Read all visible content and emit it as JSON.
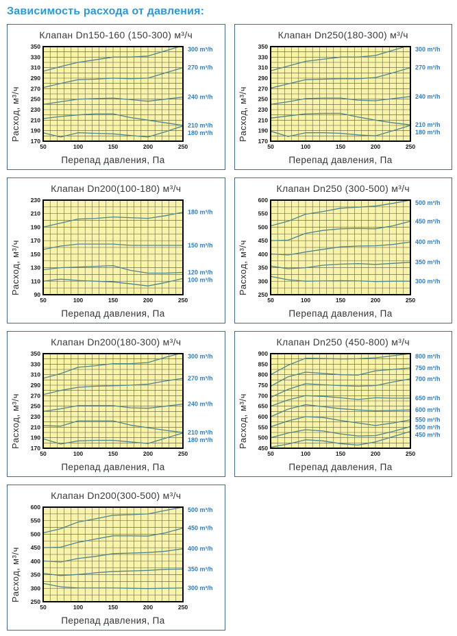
{
  "page": {
    "heading": "Зависимость расхода от давления:"
  },
  "colors": {
    "heading_blue": "#2c99d4",
    "panel_border": "#44688c",
    "plot_bg": "#f8f3ab",
    "grid_line": "#55533a",
    "curve": "#4d858d",
    "series_label_blue": "#2e7ec0",
    "frame": "#000000"
  },
  "chart_data": [
    {
      "type": "line",
      "title": "Клапан Dn150-160 (150-300) м³/ч",
      "xlabel": "Перепад давления, Па",
      "ylabel": "Расход, м³/ч",
      "legend_position": "right",
      "grid": true,
      "xlim": [
        50,
        250
      ],
      "x_tick_step": 50,
      "x_minor_step": 10,
      "ylim": [
        170,
        350
      ],
      "y_tick_step": 20,
      "y_minor_step": 10,
      "x": [
        50,
        75,
        100,
        125,
        150,
        175,
        200,
        225,
        250
      ],
      "series": [
        {
          "name": "300 m³/h",
          "values": [
            303,
            312,
            320,
            325,
            330,
            330,
            332,
            342,
            352
          ]
        },
        {
          "name": "270 m³/h",
          "values": [
            272,
            280,
            287,
            288,
            290,
            289,
            290,
            300,
            310
          ]
        },
        {
          "name": "240 m³/h",
          "values": [
            240,
            245,
            250,
            251,
            252,
            249,
            246,
            250,
            254
          ]
        },
        {
          "name": "210 m³/h",
          "values": [
            213,
            217,
            220,
            222,
            222,
            215,
            210,
            205,
            200
          ]
        },
        {
          "name": "180 m³/h",
          "values": [
            186,
            178,
            186,
            185,
            184,
            181,
            178,
            188,
            199
          ]
        }
      ]
    },
    {
      "type": "line",
      "title": "Клапан Dn250(180-300) м³/ч",
      "xlabel": "Перепад давления, Па",
      "ylabel": "Расход, м³/ч",
      "legend_position": "right",
      "grid": true,
      "xlim": [
        50,
        250
      ],
      "x_tick_step": 50,
      "x_minor_step": 10,
      "ylim": [
        170,
        350
      ],
      "y_tick_step": 20,
      "y_minor_step": 10,
      "x": [
        50,
        75,
        100,
        125,
        150,
        175,
        200,
        225,
        250
      ],
      "series": [
        {
          "name": "300 m³/h",
          "values": [
            304,
            313,
            322,
            326,
            330,
            330,
            333,
            343,
            353
          ]
        },
        {
          "name": "270 m³/h",
          "values": [
            271,
            279,
            287,
            288,
            289,
            289,
            291,
            300,
            310
          ]
        },
        {
          "name": "240 m³/h",
          "values": [
            240,
            245,
            251,
            252,
            252,
            248,
            247,
            251,
            255
          ]
        },
        {
          "name": "210 m³/h",
          "values": [
            214,
            218,
            222,
            223,
            223,
            216,
            210,
            205,
            201
          ]
        },
        {
          "name": "180 m³/h",
          "values": [
            189,
            179,
            186,
            186,
            185,
            182,
            180,
            190,
            200
          ]
        }
      ]
    },
    {
      "type": "line",
      "title": "Клапан Dn200(100-180) м³/ч",
      "xlabel": "Перепад давления, Па",
      "ylabel": "Расход, м³/ч",
      "legend_position": "right",
      "grid": true,
      "xlim": [
        50,
        250
      ],
      "x_tick_step": 50,
      "x_minor_step": 10,
      "ylim": [
        90,
        230
      ],
      "y_tick_step": 20,
      "y_minor_step": 10,
      "x": [
        50,
        75,
        100,
        125,
        150,
        175,
        200,
        225,
        250
      ],
      "series": [
        {
          "name": "180 m³/h",
          "values": [
            190,
            196,
            202,
            203,
            205,
            204,
            203,
            207,
            212
          ]
        },
        {
          "name": "150 m³/h",
          "values": [
            157,
            162,
            165,
            165,
            165,
            163,
            163,
            163,
            163
          ]
        },
        {
          "name": "120 m³/h",
          "values": [
            127,
            130,
            131,
            132,
            133,
            126,
            122,
            122,
            123
          ]
        },
        {
          "name": "100 m³/h",
          "values": [
            110,
            113,
            111,
            110,
            109,
            106,
            103,
            108,
            114
          ]
        }
      ]
    },
    {
      "type": "line",
      "title": "Клапан Dn250 (300-500) м³/ч",
      "xlabel": "Перепад давления, Па",
      "ylabel": "Расход, м³/ч",
      "legend_position": "right",
      "grid": true,
      "xlim": [
        50,
        250
      ],
      "x_tick_step": 50,
      "x_minor_step": 10,
      "ylim": [
        250,
        600
      ],
      "y_tick_step": 50,
      "y_minor_step": 25,
      "x": [
        50,
        75,
        100,
        125,
        150,
        175,
        200,
        225,
        250
      ],
      "series": [
        {
          "name": "500 m³/h",
          "values": [
            505,
            522,
            548,
            558,
            570,
            574,
            578,
            588,
            600
          ]
        },
        {
          "name": "450 m³/h",
          "values": [
            450,
            452,
            477,
            488,
            494,
            495,
            494,
            505,
            522
          ]
        },
        {
          "name": "400 m³/h",
          "values": [
            401,
            397,
            408,
            418,
            427,
            430,
            431,
            436,
            445
          ]
        },
        {
          "name": "350 m³/h",
          "values": [
            356,
            346,
            350,
            359,
            363,
            365,
            362,
            366,
            370
          ]
        },
        {
          "name": "300 m³/h",
          "values": [
            318,
            305,
            300,
            301,
            302,
            301,
            299,
            300,
            300
          ]
        }
      ]
    },
    {
      "type": "line",
      "title": "Клапан Dn200(180-300) м³/ч",
      "xlabel": "Перепад давления, Па",
      "ylabel": "Расход, м³/ч",
      "legend_position": "right",
      "grid": true,
      "xlim": [
        50,
        250
      ],
      "x_tick_step": 50,
      "x_minor_step": 10,
      "ylim": [
        170,
        350
      ],
      "y_tick_step": 20,
      "y_minor_step": 10,
      "x": [
        50,
        75,
        100,
        125,
        150,
        175,
        200,
        225,
        250
      ],
      "series": [
        {
          "name": "300 m³/h",
          "values": [
            303,
            312,
            324,
            327,
            331,
            331,
            333,
            343,
            352
          ]
        },
        {
          "name": "270 m³/h",
          "values": [
            272,
            280,
            286,
            288,
            289,
            290,
            292,
            298,
            303
          ]
        },
        {
          "name": "240 m³/h",
          "values": [
            240,
            245,
            251,
            251,
            251,
            247,
            246,
            250,
            254
          ]
        },
        {
          "name": "210 m³/h",
          "values": [
            213,
            212,
            222,
            222,
            222,
            214,
            209,
            204,
            200
          ]
        },
        {
          "name": "180 m³/h",
          "values": [
            188,
            178,
            184,
            185,
            185,
            182,
            179,
            189,
            199
          ]
        }
      ]
    },
    {
      "type": "line",
      "title": "Клапан Dn250 (450-800) м³/ч",
      "xlabel": "Перепад давления, Па",
      "ylabel": "Расход, м³/ч",
      "legend_position": "right",
      "grid": true,
      "xlim": [
        50,
        250
      ],
      "x_tick_step": 50,
      "x_minor_step": 10,
      "ylim": [
        450,
        900
      ],
      "y_tick_step": 50,
      "y_minor_step": 25,
      "x": [
        50,
        75,
        100,
        125,
        150,
        175,
        200,
        225,
        250
      ],
      "series": [
        {
          "name": "800 m³/h",
          "values": [
            800,
            845,
            878,
            877,
            875,
            876,
            880,
            890,
            900
          ]
        },
        {
          "name": "750 m³/h",
          "values": [
            745,
            790,
            812,
            806,
            800,
            798,
            818,
            825,
            832
          ]
        },
        {
          "name": "700 m³/h",
          "values": [
            692,
            730,
            757,
            752,
            748,
            745,
            748,
            765,
            780
          ]
        },
        {
          "name": "650 m³/h",
          "values": [
            650,
            680,
            700,
            697,
            690,
            682,
            690,
            688,
            688
          ]
        },
        {
          "name": "600 m³/h",
          "values": [
            600,
            636,
            657,
            648,
            638,
            632,
            628,
            630,
            632
          ]
        },
        {
          "name": "550 m³/h",
          "values": [
            552,
            580,
            600,
            596,
            582,
            570,
            558,
            570,
            585
          ]
        },
        {
          "name": "500 m³/h",
          "values": [
            500,
            522,
            538,
            532,
            518,
            508,
            510,
            530,
            553
          ]
        },
        {
          "name": "450 m³/h",
          "values": [
            455,
            470,
            490,
            485,
            472,
            465,
            480,
            505,
            530
          ]
        }
      ]
    },
    {
      "type": "line",
      "title": "Клапан Dn200(300-500) м³/ч",
      "xlabel": "Перепад давления, Па",
      "ylabel": "Расход, м³/ч",
      "legend_position": "right",
      "grid": true,
      "xlim": [
        50,
        250
      ],
      "x_tick_step": 50,
      "x_minor_step": 10,
      "ylim": [
        250,
        600
      ],
      "y_tick_step": 50,
      "y_minor_step": 25,
      "x": [
        50,
        75,
        100,
        125,
        150,
        175,
        200,
        225,
        250
      ],
      "series": [
        {
          "name": "500 m³/h",
          "values": [
            505,
            520,
            545,
            557,
            570,
            572,
            575,
            588,
            600
          ]
        },
        {
          "name": "450 m³/h",
          "values": [
            450,
            452,
            470,
            482,
            494,
            494,
            493,
            505,
            523
          ]
        },
        {
          "name": "400 m³/h",
          "values": [
            401,
            397,
            410,
            418,
            428,
            430,
            432,
            437,
            446
          ]
        },
        {
          "name": "350 m³/h",
          "values": [
            355,
            347,
            351,
            357,
            362,
            364,
            366,
            370,
            371
          ]
        },
        {
          "name": "300 m³/h",
          "values": [
            318,
            305,
            301,
            301,
            301,
            300,
            299,
            300,
            301
          ]
        }
      ]
    }
  ]
}
